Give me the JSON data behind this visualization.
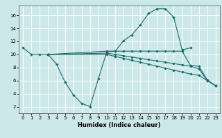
{
  "xlabel": "Humidex (Indice chaleur)",
  "bg_color": "#cce8e8",
  "line_color": "#1a6b6b",
  "grid_color": "#ffffff",
  "xlim": [
    -0.5,
    23.5
  ],
  "ylim": [
    1,
    17.5
  ],
  "yticks": [
    2,
    4,
    6,
    8,
    10,
    12,
    14,
    16
  ],
  "line1_x": [
    0,
    1,
    2,
    3,
    4,
    5,
    6,
    7,
    8,
    9,
    10,
    11,
    12,
    13,
    14,
    15,
    16,
    17,
    18,
    19,
    20
  ],
  "line1_y": [
    11.0,
    10.0,
    10.0,
    10.0,
    8.5,
    5.8,
    3.8,
    2.5,
    2.0,
    6.3,
    10.4,
    10.5,
    12.1,
    13.0,
    14.5,
    16.3,
    17.0,
    17.0,
    15.7,
    10.7,
    11.0
  ],
  "line2_x": [
    3,
    10,
    11,
    12,
    13,
    14,
    15,
    16,
    17,
    18,
    19,
    20,
    21,
    22,
    23
  ],
  "line2_y": [
    10.0,
    10.5,
    10.5,
    10.5,
    10.5,
    10.5,
    10.5,
    10.5,
    10.5,
    10.5,
    10.5,
    8.3,
    8.2,
    6.1,
    5.2
  ],
  "line3_x": [
    3,
    10,
    11,
    12,
    13,
    14,
    15,
    16,
    17,
    18,
    19,
    20,
    21,
    22,
    23
  ],
  "line3_y": [
    10.0,
    10.2,
    10.0,
    9.8,
    9.6,
    9.4,
    9.2,
    9.0,
    8.8,
    8.6,
    8.4,
    8.2,
    7.8,
    6.0,
    5.2
  ],
  "line4_x": [
    3,
    10,
    11,
    12,
    13,
    14,
    15,
    16,
    17,
    18,
    19,
    20,
    21,
    22,
    23
  ],
  "line4_y": [
    10.0,
    10.0,
    9.7,
    9.4,
    9.1,
    8.8,
    8.5,
    8.2,
    7.9,
    7.6,
    7.3,
    7.0,
    6.8,
    6.0,
    5.2
  ]
}
